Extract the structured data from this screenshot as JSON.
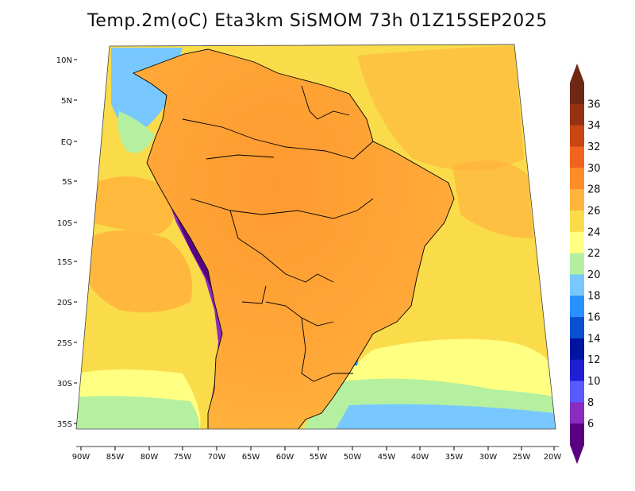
{
  "title": "Temp.2m(oC) Eta3km SiSMOM 73h 01Z15SEP2025",
  "lat_labels": [
    "10N",
    "5N",
    "EQ",
    "5S",
    "10S",
    "15S",
    "20S",
    "25S",
    "30S",
    "35S"
  ],
  "lon_labels": [
    "90W",
    "85W",
    "80W",
    "75W",
    "70W",
    "65W",
    "60W",
    "55W",
    "50W",
    "45W",
    "40W",
    "35W",
    "30W",
    "25W",
    "20W"
  ],
  "colorbar": {
    "levels": [
      "6",
      "8",
      "10",
      "12",
      "14",
      "16",
      "18",
      "20",
      "22",
      "24",
      "26",
      "28",
      "30",
      "32",
      "34",
      "36"
    ],
    "colors": [
      "#5a0082",
      "#8a2cc0",
      "#5a5aff",
      "#1e1ed2",
      "#0014a0",
      "#0a50d2",
      "#2890ff",
      "#78c8ff",
      "#b4f0a0",
      "#ffff82",
      "#fadc4b",
      "#ffb43c",
      "#ff8c28",
      "#f0641e",
      "#c84614",
      "#963214",
      "#6e2814"
    ]
  },
  "map_colors": {
    "ocean_warm": "#ffb43c",
    "ocean_mild": "#fadc4b",
    "ocean_cool": "#ffff82",
    "land_hot": "#ff8c28",
    "andes_cold": "#5a0082",
    "andes_mid": "#8a2cc0",
    "cold_blue": "#0a50d2"
  }
}
